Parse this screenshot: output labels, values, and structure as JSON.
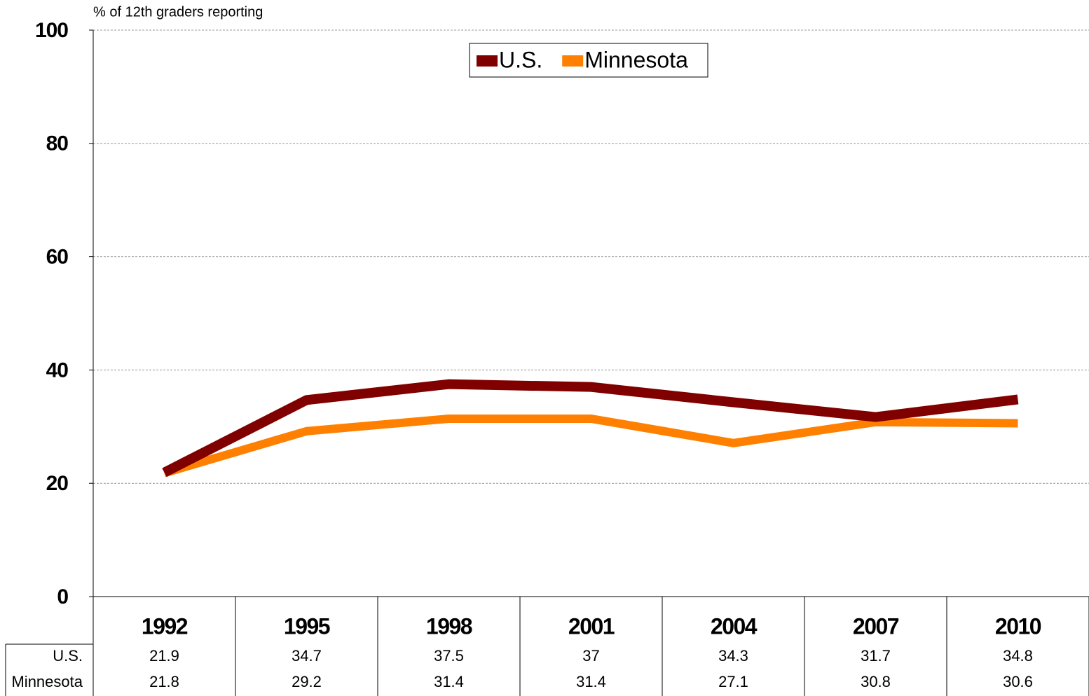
{
  "chart_data": {
    "type": "line",
    "y_axis_label": "% of 12th graders reporting",
    "categories": [
      "1992",
      "1995",
      "1998",
      "2001",
      "2004",
      "2007",
      "2010"
    ],
    "series": [
      {
        "name": "U.S.",
        "color": "#800000",
        "values": [
          21.9,
          34.7,
          37.5,
          37,
          34.3,
          31.7,
          34.8
        ]
      },
      {
        "name": "Minnesota",
        "color": "#ff8000",
        "values": [
          21.8,
          29.2,
          31.4,
          31.4,
          27.1,
          30.8,
          30.6
        ]
      }
    ],
    "ylim": [
      0,
      100
    ],
    "yticks": [
      0,
      20,
      40,
      60,
      80,
      100
    ],
    "grid": true,
    "legend": "top",
    "data_table": true
  }
}
